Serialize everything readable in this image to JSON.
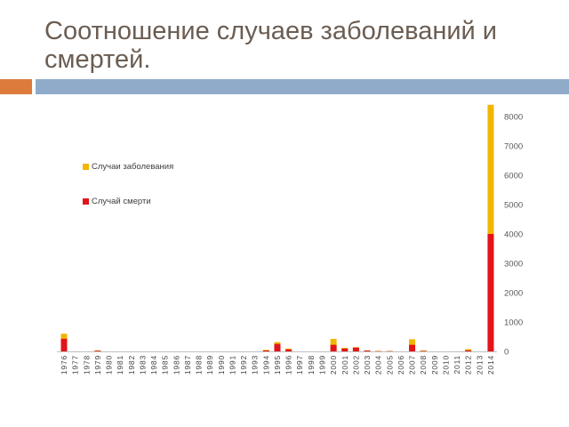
{
  "slide": {
    "title": "Соотношение случаев заболеваний и смертей."
  },
  "colors": {
    "title": "#6b5d52",
    "accent_orange": "#dd7b3d",
    "accent_blue": "#8fabc9"
  },
  "chart_data": {
    "type": "bar",
    "bar_mode": "overlap",
    "categories": [
      "1976",
      "1977",
      "1978",
      "1979",
      "1980",
      "1981",
      "1982",
      "1983",
      "1984",
      "1985",
      "1986",
      "1987",
      "1988",
      "1989",
      "1990",
      "1991",
      "1992",
      "1993",
      "1994",
      "1995",
      "1996",
      "1997",
      "1998",
      "1999",
      "2000",
      "2001",
      "2002",
      "2003",
      "2004",
      "2005",
      "2006",
      "2007",
      "2008",
      "2009",
      "2010",
      "2011",
      "2012",
      "2013",
      "2014"
    ],
    "series": [
      {
        "name": "Случаи заболевания",
        "color": "#f2b600",
        "values": [
          602,
          1,
          0,
          34,
          0,
          0,
          0,
          0,
          0,
          0,
          0,
          0,
          0,
          0,
          0,
          0,
          0,
          0,
          52,
          315,
          97,
          0,
          0,
          0,
          425,
          122,
          143,
          35,
          17,
          12,
          0,
          413,
          32,
          0,
          0,
          1,
          77,
          0,
          8400
        ]
      },
      {
        "name": "Случай смерти",
        "color": "#e2141b",
        "values": [
          431,
          1,
          0,
          22,
          0,
          0,
          0,
          0,
          0,
          0,
          0,
          0,
          0,
          0,
          0,
          0,
          0,
          0,
          31,
          254,
          66,
          0,
          0,
          0,
          224,
          96,
          128,
          29,
          7,
          10,
          0,
          224,
          15,
          0,
          0,
          1,
          36,
          0,
          4000
        ]
      }
    ],
    "yticks": [
      "0",
      "1000",
      "2000",
      "3000",
      "4000",
      "5000",
      "6000",
      "7000",
      "8000"
    ],
    "ylim": [
      0,
      8400
    ],
    "y_axis_position": "right",
    "legend_position": "left",
    "grid": false
  }
}
